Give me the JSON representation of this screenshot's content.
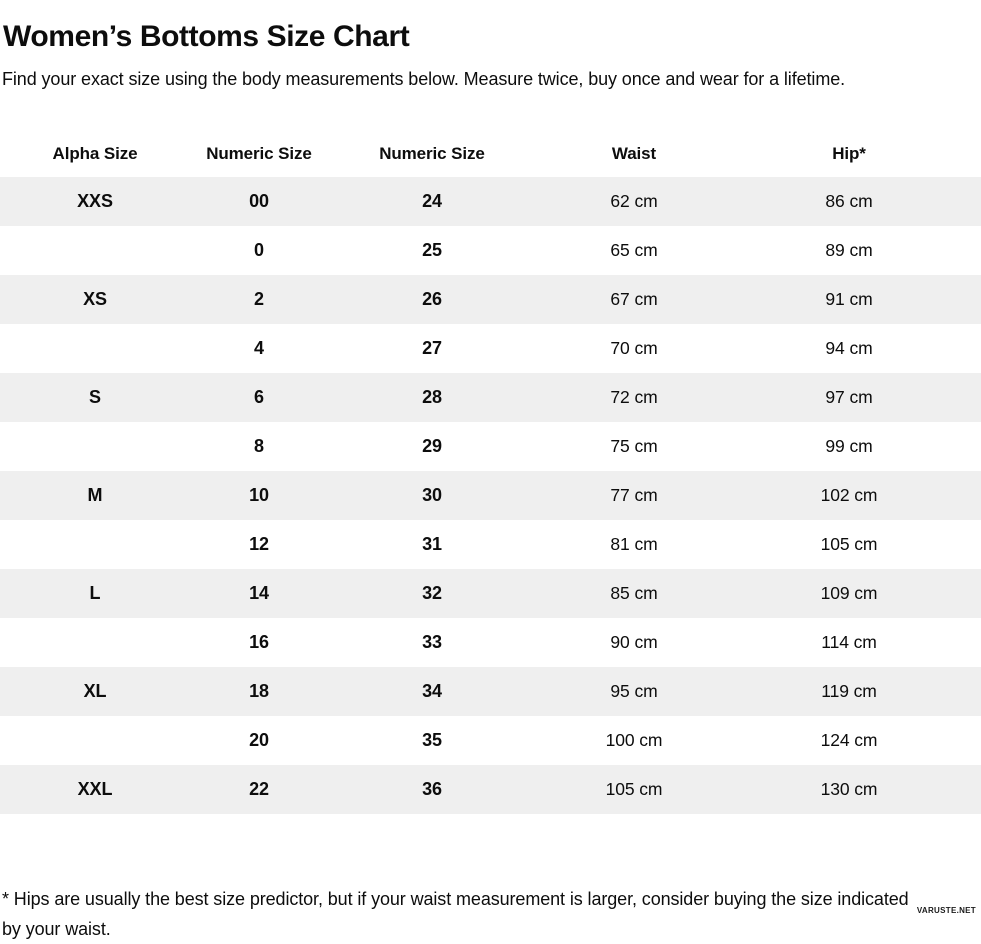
{
  "page": {
    "title": "Women’s Bottoms Size Chart",
    "subtitle": "Find your exact size using the body measurements below. Measure twice, buy once and wear for a lifetime.",
    "footnote": "* Hips are usually the best size predictor, but if your waist measurement is larger, consider buying the size indicated by your waist.",
    "watermark": "VARUSTE.NET"
  },
  "colors": {
    "background": "#FFFFFF",
    "stripe": "#EFEFEF",
    "text": "#0D0D0D"
  },
  "table": {
    "columns": [
      "Alpha Size",
      "Numeric Size",
      "Numeric Size",
      "Waist",
      "Hip*"
    ],
    "rows": [
      [
        "XXS",
        "00",
        "24",
        "62 cm",
        "86 cm"
      ],
      [
        "",
        "0",
        "25",
        "65 cm",
        "89 cm"
      ],
      [
        "XS",
        "2",
        "26",
        "67 cm",
        "91 cm"
      ],
      [
        "",
        "4",
        "27",
        "70 cm",
        "94 cm"
      ],
      [
        "S",
        "6",
        "28",
        "72 cm",
        "97 cm"
      ],
      [
        "",
        "8",
        "29",
        "75 cm",
        "99 cm"
      ],
      [
        "M",
        "10",
        "30",
        "77 cm",
        "102 cm"
      ],
      [
        "",
        "12",
        "31",
        "81 cm",
        "105 cm"
      ],
      [
        "L",
        "14",
        "32",
        "85 cm",
        "109 cm"
      ],
      [
        "",
        "16",
        "33",
        "90 cm",
        "114 cm"
      ],
      [
        "XL",
        "18",
        "34",
        "95 cm",
        "119 cm"
      ],
      [
        "",
        "20",
        "35",
        "100 cm",
        "124 cm"
      ],
      [
        "XXL",
        "22",
        "36",
        "105 cm",
        "130 cm"
      ]
    ]
  }
}
